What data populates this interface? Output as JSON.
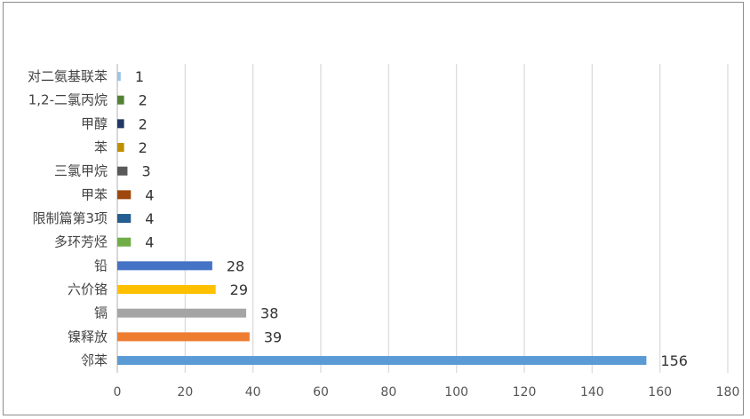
{
  "chart_data": {
    "type": "bar",
    "orientation": "horizontal",
    "title": "",
    "xlabel": "",
    "ylabel": "",
    "xlim": [
      0,
      180
    ],
    "x_ticks": [
      0,
      20,
      40,
      60,
      80,
      100,
      120,
      140,
      160,
      180
    ],
    "grid": "vertical",
    "legend": "none",
    "categories": [
      "对二氨基联苯",
      "1,2-二氯丙烷",
      "甲醇",
      "苯",
      "三氯甲烷",
      "甲苯",
      "限制篇第3项",
      "多环芳烃",
      "铅",
      "六价铬",
      "镉",
      "镍释放",
      "邻苯"
    ],
    "values": [
      1,
      2,
      2,
      2,
      3,
      4,
      4,
      4,
      28,
      29,
      38,
      39,
      156
    ],
    "colors": [
      "#9dc3e6",
      "#548235",
      "#203864",
      "#bf9000",
      "#595959",
      "#9e480e",
      "#255e91",
      "#70ad47",
      "#4472c4",
      "#ffc000",
      "#a5a5a5",
      "#ed7d31",
      "#5b9bd5"
    ]
  }
}
